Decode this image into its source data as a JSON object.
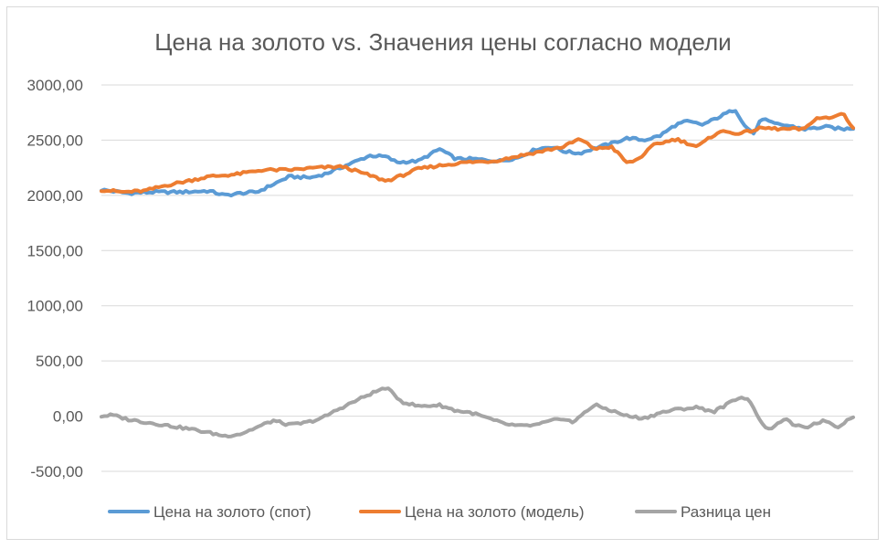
{
  "chart_data": {
    "type": "line",
    "title": "Цена на золото vs. Значения цены согласно модели",
    "xlabel": "",
    "ylabel": "",
    "ylim": [
      -500,
      3000
    ],
    "yticks": [
      "-500,00",
      "0,00",
      "500,00",
      "1000,00",
      "1500,00",
      "2000,00",
      "2500,00",
      "3000,00"
    ],
    "ytick_values": [
      -500,
      0,
      500,
      1000,
      1500,
      2000,
      2500,
      3000
    ],
    "grid": true,
    "legend_position": "bottom",
    "n_points": 250,
    "series": [
      {
        "name": "Цена на золото (спот)",
        "color": "#5b9bd5",
        "anchors": [
          [
            0,
            2050
          ],
          [
            10,
            2020
          ],
          [
            20,
            2030
          ],
          [
            30,
            2030
          ],
          [
            40,
            2040
          ],
          [
            46,
            2000
          ],
          [
            52,
            2020
          ],
          [
            58,
            2030
          ],
          [
            64,
            2100
          ],
          [
            70,
            2170
          ],
          [
            78,
            2160
          ],
          [
            84,
            2200
          ],
          [
            92,
            2280
          ],
          [
            100,
            2360
          ],
          [
            106,
            2350
          ],
          [
            110,
            2300
          ],
          [
            118,
            2310
          ],
          [
            126,
            2420
          ],
          [
            132,
            2330
          ],
          [
            138,
            2330
          ],
          [
            148,
            2310
          ],
          [
            155,
            2340
          ],
          [
            162,
            2420
          ],
          [
            168,
            2440
          ],
          [
            172,
            2400
          ],
          [
            178,
            2380
          ],
          [
            184,
            2430
          ],
          [
            190,
            2470
          ],
          [
            196,
            2520
          ],
          [
            202,
            2500
          ],
          [
            208,
            2540
          ],
          [
            214,
            2640
          ],
          [
            218,
            2670
          ],
          [
            224,
            2640
          ],
          [
            230,
            2710
          ],
          [
            236,
            2780
          ],
          [
            240,
            2620
          ],
          [
            243,
            2560
          ],
          [
            246,
            2700
          ],
          [
            250,
            2650
          ],
          [
            256,
            2630
          ],
          [
            262,
            2600
          ],
          [
            270,
            2620
          ],
          [
            276,
            2600
          ],
          [
            280,
            2610
          ]
        ]
      },
      {
        "name": "Цена на золото (модель)",
        "color": "#ed7d31",
        "anchors": [
          [
            0,
            2050
          ],
          [
            8,
            2030
          ],
          [
            16,
            2040
          ],
          [
            24,
            2090
          ],
          [
            32,
            2130
          ],
          [
            40,
            2170
          ],
          [
            50,
            2190
          ],
          [
            60,
            2230
          ],
          [
            70,
            2230
          ],
          [
            80,
            2250
          ],
          [
            90,
            2260
          ],
          [
            100,
            2180
          ],
          [
            106,
            2130
          ],
          [
            112,
            2180
          ],
          [
            118,
            2240
          ],
          [
            126,
            2270
          ],
          [
            136,
            2300
          ],
          [
            146,
            2310
          ],
          [
            156,
            2360
          ],
          [
            164,
            2400
          ],
          [
            172,
            2440
          ],
          [
            178,
            2510
          ],
          [
            184,
            2420
          ],
          [
            190,
            2440
          ],
          [
            196,
            2290
          ],
          [
            200,
            2330
          ],
          [
            206,
            2460
          ],
          [
            214,
            2510
          ],
          [
            222,
            2440
          ],
          [
            230,
            2580
          ],
          [
            238,
            2560
          ],
          [
            246,
            2610
          ],
          [
            254,
            2600
          ],
          [
            262,
            2600
          ],
          [
            266,
            2700
          ],
          [
            272,
            2700
          ],
          [
            276,
            2750
          ],
          [
            280,
            2610
          ]
        ]
      },
      {
        "name": "Разница цен",
        "color": "#a5a5a5",
        "anchors": [
          [
            0,
            0
          ],
          [
            4,
            10
          ],
          [
            10,
            -30
          ],
          [
            18,
            -60
          ],
          [
            26,
            -90
          ],
          [
            34,
            -120
          ],
          [
            40,
            -150
          ],
          [
            46,
            -180
          ],
          [
            52,
            -160
          ],
          [
            58,
            -100
          ],
          [
            64,
            -40
          ],
          [
            70,
            -80
          ],
          [
            76,
            -60
          ],
          [
            82,
            -20
          ],
          [
            88,
            60
          ],
          [
            94,
            130
          ],
          [
            100,
            200
          ],
          [
            106,
            260
          ],
          [
            112,
            130
          ],
          [
            118,
            90
          ],
          [
            126,
            100
          ],
          [
            132,
            50
          ],
          [
            138,
            30
          ],
          [
            144,
            -20
          ],
          [
            150,
            -70
          ],
          [
            156,
            -90
          ],
          [
            162,
            -80
          ],
          [
            168,
            -40
          ],
          [
            172,
            -20
          ],
          [
            176,
            -60
          ],
          [
            180,
            40
          ],
          [
            184,
            100
          ],
          [
            190,
            50
          ],
          [
            196,
            0
          ],
          [
            202,
            -20
          ],
          [
            208,
            30
          ],
          [
            214,
            60
          ],
          [
            222,
            80
          ],
          [
            228,
            40
          ],
          [
            234,
            120
          ],
          [
            238,
            180
          ],
          [
            242,
            130
          ],
          [
            246,
            -80
          ],
          [
            250,
            -120
          ],
          [
            254,
            -20
          ],
          [
            258,
            -80
          ],
          [
            262,
            -110
          ],
          [
            266,
            -60
          ],
          [
            270,
            -40
          ],
          [
            274,
            -100
          ],
          [
            280,
            0
          ]
        ]
      }
    ]
  }
}
